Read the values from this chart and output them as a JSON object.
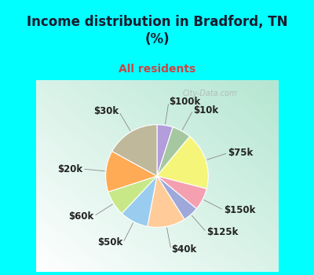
{
  "title": "Income distribution in Bradford, TN\n(%)",
  "subtitle": "All residents",
  "title_color": "#1a1a2e",
  "subtitle_color": "#e57373",
  "background_color": "#00ffff",
  "watermark": "City-Data.com",
  "labels": [
    "$100k",
    "$10k",
    "$75k",
    "$150k",
    "$125k",
    "$40k",
    "$50k",
    "$60k",
    "$20k",
    "$30k"
  ],
  "sizes": [
    5,
    6,
    18,
    7,
    5,
    12,
    9,
    8,
    13,
    17
  ],
  "colors": [
    "#b39ddb",
    "#a5c8a0",
    "#f5f57a",
    "#f4a0b0",
    "#9fa8da",
    "#ffcc99",
    "#99ccee",
    "#c8e888",
    "#ffaa55",
    "#c0b89a"
  ],
  "label_font_size": 8.5,
  "start_angle": 90
}
